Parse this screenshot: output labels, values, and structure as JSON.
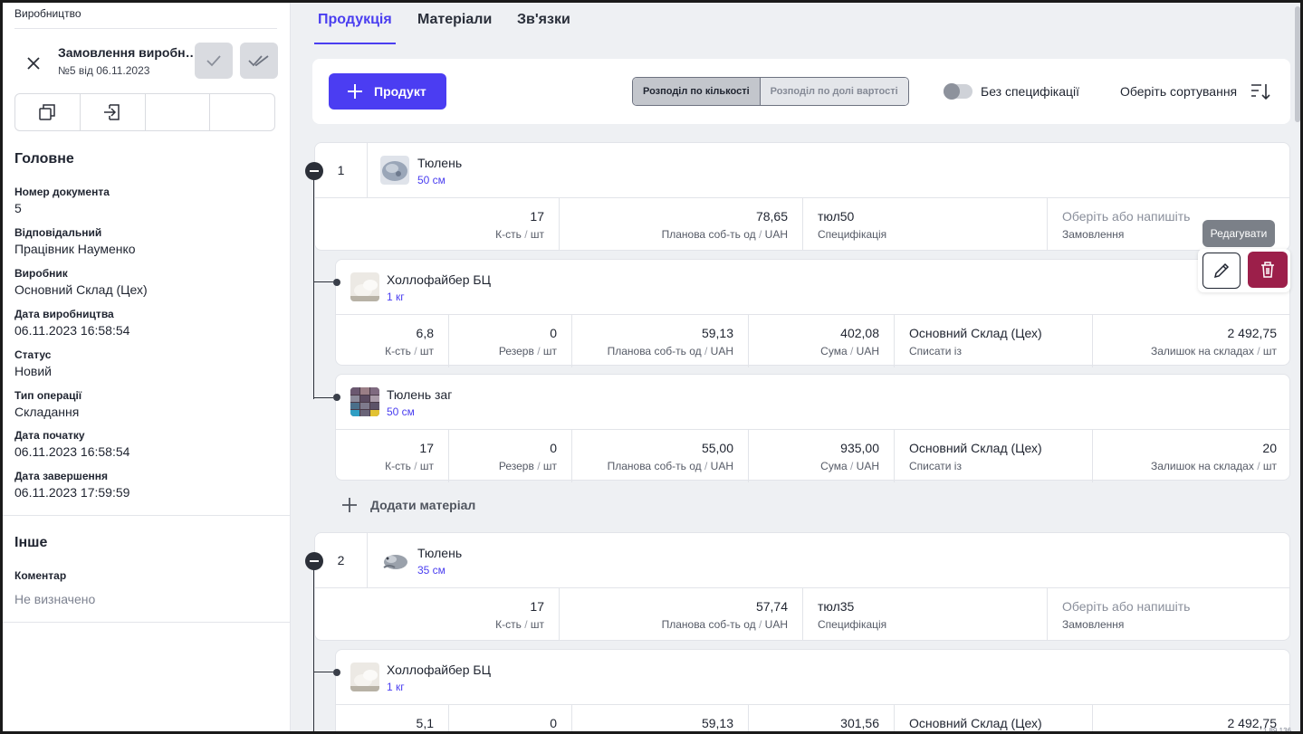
{
  "sidebar": {
    "section_label": "Виробництво",
    "doc_title": "Замовлення виробництва",
    "doc_title_display": "Замовлення виробн…",
    "doc_subtitle": "№5 від 06.11.2023",
    "main_heading": "Головне",
    "fields": [
      {
        "label": "Номер документа",
        "value": "5"
      },
      {
        "label": "Відповідальний",
        "value": "Працівник Науменко"
      },
      {
        "label": "Виробник",
        "value": "Основний Склад (Цех)"
      },
      {
        "label": "Дата виробництва",
        "value": "06.11.2023 16:58:54"
      },
      {
        "label": "Статус",
        "value": "Новий"
      },
      {
        "label": "Тип операції",
        "value": "Складання"
      },
      {
        "label": "Дата початку",
        "value": "06.11.2023 16:58:54"
      },
      {
        "label": "Дата завершення",
        "value": "06.11.2023 17:59:59"
      }
    ],
    "other_heading": "Інше",
    "comment_label": "Коментар",
    "comment_value": "Не визначено"
  },
  "tabs": [
    {
      "label": "Продукція",
      "active": true
    },
    {
      "label": "Матеріали",
      "active": false
    },
    {
      "label": "Зв'язки",
      "active": false
    }
  ],
  "actionbar": {
    "add_product_label": "Продукт",
    "segments": [
      "Розподіл по кількості",
      "Розподіл по долі вартості"
    ],
    "active_segment": 0,
    "toggle_label": "Без специфікації",
    "toggle_on": false,
    "sort_label": "Оберіть сортування"
  },
  "labels": {
    "qty": "К-сть",
    "pcs": "шт",
    "planned_cost": "Планова соб-ть од",
    "planned_cost_truncated": "Планова соб-ть од",
    "uah": "UAH",
    "spec": "Специфікація",
    "order": "Замовлення",
    "reserve": "Резерв",
    "sum": "Сума",
    "write_off_from": "Списати із",
    "stock": "Залишок на складах",
    "order_placeholder": "Оберіть або напишіть",
    "add_material": "Додати матеріал"
  },
  "products": [
    {
      "num": "1",
      "name": "Тюлень",
      "unit": "50 см",
      "qty": "17",
      "planned_cost": "78,65",
      "spec": "тюл50",
      "materials": [
        {
          "name": "Холлофайбер БЦ",
          "unit": "1 кг",
          "qty": "6,8",
          "reserve": "0",
          "planned_cost": "59,13",
          "sum": "402,08",
          "warehouse": "Основний Склад (Цех)",
          "stock": "2 492,75"
        },
        {
          "name": "Тюлень заг",
          "unit": "50 см",
          "qty": "17",
          "reserve": "0",
          "planned_cost": "55,00",
          "sum": "935,00",
          "warehouse": "Основний Склад (Цех)",
          "stock": "20"
        }
      ]
    },
    {
      "num": "2",
      "name": "Тюлень",
      "unit": "35 см",
      "qty": "17",
      "planned_cost": "57,74",
      "spec": "тюл35",
      "materials": [
        {
          "name": "Холлофайбер БЦ",
          "unit": "1 кг",
          "qty": "5,1",
          "reserve": "0",
          "planned_cost": "59,13",
          "sum": "301,56",
          "warehouse": "Основний Склад (Цех)",
          "stock": "2 492,75"
        }
      ]
    }
  ],
  "row_actions": {
    "tooltip": "Редагувати"
  },
  "version": "1.89.136",
  "colors": {
    "accent": "#4b3df2",
    "danger": "#9c1f4a",
    "background": "#eef0f3"
  }
}
